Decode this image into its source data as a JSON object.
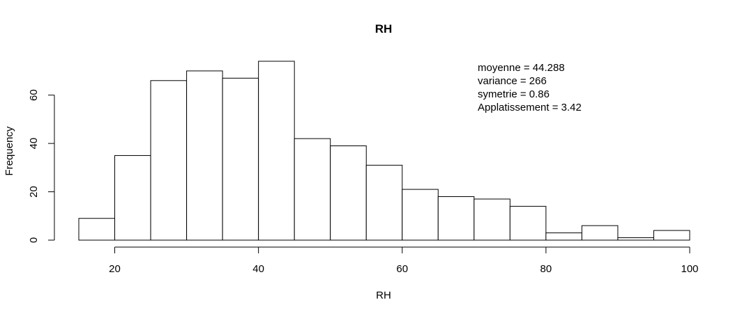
{
  "chart_data": {
    "type": "bar",
    "title": "RH",
    "xlabel": "RH",
    "ylabel": "Frequency",
    "bin_edges": [
      15,
      20,
      25,
      30,
      35,
      40,
      45,
      50,
      55,
      60,
      65,
      70,
      75,
      80,
      85,
      90,
      95,
      100
    ],
    "values": [
      9,
      35,
      66,
      70,
      67,
      74,
      42,
      39,
      31,
      21,
      18,
      17,
      14,
      3,
      6,
      1,
      4
    ],
    "xlim": [
      15,
      100
    ],
    "ylim": [
      0,
      74
    ],
    "x_ticks": [
      20,
      40,
      60,
      80,
      100
    ],
    "y_ticks": [
      0,
      20,
      40,
      60
    ],
    "grid": false,
    "annotations": [
      "moyenne = 44.288",
      "variance = 266",
      "symetrie = 0.86",
      "Applatissement = 3.42"
    ]
  }
}
